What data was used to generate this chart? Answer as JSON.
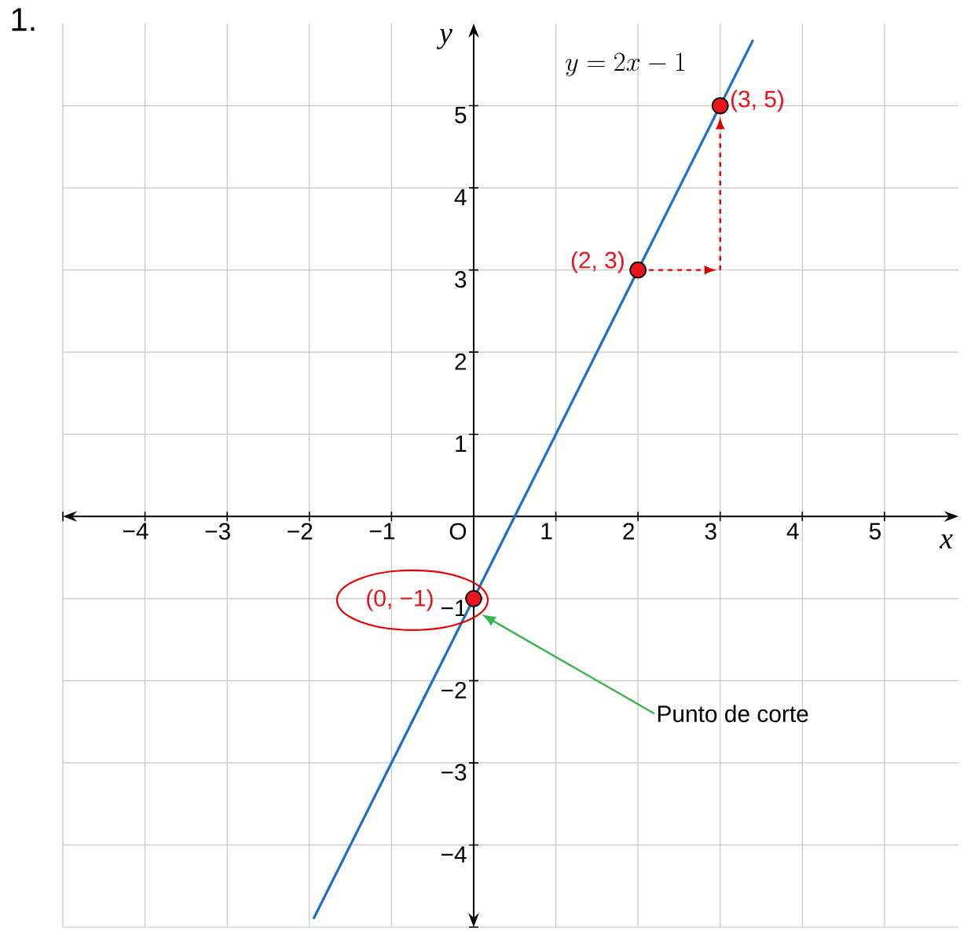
{
  "chart_data": {
    "type": "line",
    "title": "1.",
    "xlabel": "x",
    "ylabel": "y",
    "xlim": [
      -5,
      5.9
    ],
    "ylim": [
      -5,
      6
    ],
    "xticks": [
      {
        "value": -5,
        "label": null
      },
      {
        "value": -4,
        "label": "−4"
      },
      {
        "value": -3,
        "label": "−3"
      },
      {
        "value": -2,
        "label": "−2"
      },
      {
        "value": -1,
        "label": "−1"
      },
      1,
      2,
      3,
      4,
      5
    ],
    "yticks": [
      {
        "value": -5,
        "label": null
      },
      {
        "value": -4,
        "label": "−4"
      },
      {
        "value": -3,
        "label": "−3"
      },
      {
        "value": -2,
        "label": "−2"
      },
      {
        "value": -1,
        "label": "−1"
      },
      1,
      2,
      3,
      4,
      5
    ],
    "grid": true,
    "series": [
      {
        "color": "#1f6fbf",
        "x": [
          -1.95,
          3.4
        ],
        "values": [
          -4.9,
          5.8
        ]
      },
      {
        "type": "scatter",
        "color": "#e8141b",
        "marker": "circle",
        "x": [
          0,
          2,
          3
        ],
        "values": [
          -1,
          3,
          5
        ]
      }
    ],
    "annotations": [
      "y = 2x - 1",
      {
        "text": "(3, 5)",
        "x": 3,
        "y": 5
      },
      {
        "text": "(2, 3)",
        "x": 2,
        "y": 3
      },
      {
        "text": "(0, −1)",
        "x": 0,
        "y": -1
      },
      "Punto de corte",
      "O"
    ]
  }
}
